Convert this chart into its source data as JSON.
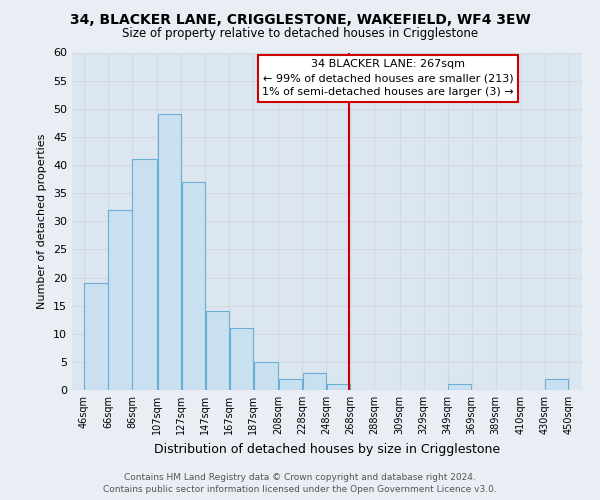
{
  "title": "34, BLACKER LANE, CRIGGLESTONE, WAKEFIELD, WF4 3EW",
  "subtitle": "Size of property relative to detached houses in Crigglestone",
  "xlabel": "Distribution of detached houses by size in Crigglestone",
  "ylabel": "Number of detached properties",
  "bar_left_edges": [
    46,
    66,
    86,
    107,
    127,
    147,
    167,
    187,
    208,
    228,
    248,
    268,
    288,
    309,
    329,
    349,
    369,
    389,
    410,
    430
  ],
  "bar_heights": [
    19,
    32,
    41,
    49,
    37,
    14,
    11,
    5,
    2,
    3,
    1,
    0,
    0,
    0,
    0,
    1,
    0,
    0,
    0,
    2
  ],
  "bar_widths": [
    20,
    20,
    21,
    20,
    20,
    20,
    20,
    21,
    20,
    20,
    20,
    20,
    21,
    20,
    20,
    20,
    20,
    21,
    20,
    20
  ],
  "bar_color": "#c9e0f0",
  "bar_edge_color": "#6aaed6",
  "vline_x": 267,
  "vline_color": "#cc0000",
  "ylim": [
    0,
    60
  ],
  "xlim": [
    36,
    461
  ],
  "yticks": [
    0,
    5,
    10,
    15,
    20,
    25,
    30,
    35,
    40,
    45,
    50,
    55,
    60
  ],
  "xtick_labels": [
    "46sqm",
    "66sqm",
    "86sqm",
    "107sqm",
    "127sqm",
    "147sqm",
    "167sqm",
    "187sqm",
    "208sqm",
    "228sqm",
    "248sqm",
    "268sqm",
    "288sqm",
    "309sqm",
    "329sqm",
    "349sqm",
    "369sqm",
    "389sqm",
    "410sqm",
    "430sqm",
    "450sqm"
  ],
  "xtick_positions": [
    46,
    66,
    86,
    107,
    127,
    147,
    167,
    187,
    208,
    228,
    248,
    268,
    288,
    309,
    329,
    349,
    369,
    389,
    410,
    430,
    450
  ],
  "annotation_title": "34 BLACKER LANE: 267sqm",
  "annotation_line1": "← 99% of detached houses are smaller (213)",
  "annotation_line2": "1% of semi-detached houses are larger (3) →",
  "annotation_box_color": "#ffffff",
  "annotation_box_edge": "#cc0000",
  "footer_line1": "Contains HM Land Registry data © Crown copyright and database right 2024.",
  "footer_line2": "Contains public sector information licensed under the Open Government Licence v3.0.",
  "bg_color": "#e8eef4",
  "grid_color": "#d0d8e0",
  "plot_bg_color": "#dce6f0"
}
